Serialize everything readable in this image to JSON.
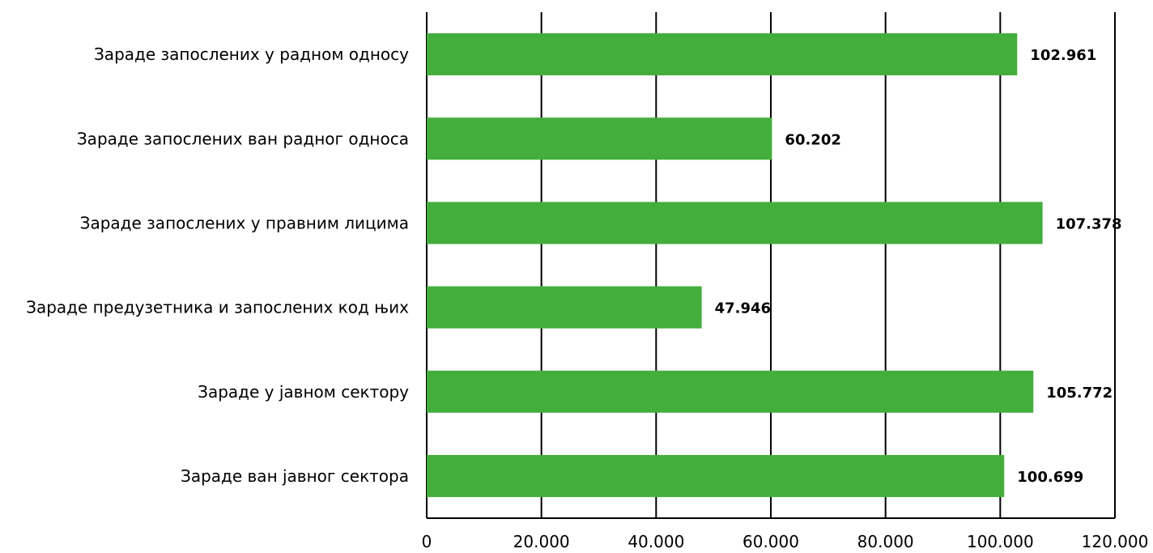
{
  "chart_data": {
    "type": "bar",
    "orientation": "horizontal",
    "title": "",
    "xlabel": "",
    "ylabel": "",
    "categories": [
      "Зараде запослених у радном односу",
      "Зараде запослених ван радног односа",
      "Зараде запослених у правним лицима",
      "Зараде предузетника и запослених код њих",
      "Зараде у јавном сектору",
      "Зараде ван јавног сектора"
    ],
    "values": [
      102961,
      60202,
      107378,
      47946,
      105772,
      100699
    ],
    "value_labels": [
      "102.961",
      "60.202",
      "107.378",
      "47.946",
      "105.772",
      "100.699"
    ],
    "xlim": [
      0,
      120000
    ],
    "xticks": [
      0,
      20000,
      40000,
      60000,
      80000,
      100000,
      120000
    ],
    "xtick_labels": [
      "0",
      "20.000",
      "40.000",
      "60.000",
      "80.000",
      "100.000",
      "120.000"
    ],
    "grid": true,
    "legend": "none",
    "colors": {
      "bar": "#43ae3b",
      "grid": "#000000",
      "text": "#000000"
    }
  }
}
